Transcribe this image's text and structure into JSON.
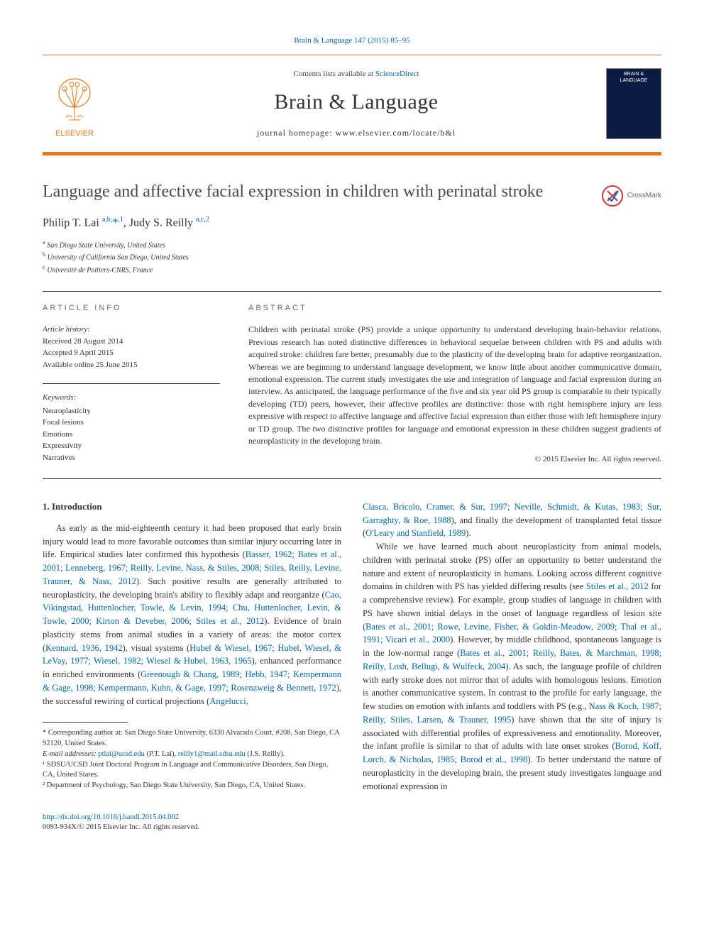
{
  "top_link": {
    "text": "Brain & Language 147 (2015) 85–95",
    "color": "#0066aa"
  },
  "masthead": {
    "contents_prefix": "Contents lists available at ",
    "contents_link": "ScienceDirect",
    "journal_name": "Brain & Language",
    "homepage_label": "journal homepage: www.elsevier.com/locate/b&l",
    "elsevier_label": "ELSEVIER",
    "cover_text": "BRAIN & LANGUAGE"
  },
  "article": {
    "title": "Language and affective facial expression in children with perinatal stroke",
    "crossmark_label": "CrossMark",
    "authors_html": "Philip T. Lai <sup>a,b,</sup><a>*</a><sup>,1</sup>, Judy S. Reilly <sup>a,c,2</sup>",
    "affiliations": [
      {
        "sup": "a",
        "text": "San Diego State University, United States"
      },
      {
        "sup": "b",
        "text": "University of California San Diego, United States"
      },
      {
        "sup": "c",
        "text": "Université de Poitiers-CNRS, France"
      }
    ]
  },
  "info": {
    "label": "ARTICLE INFO",
    "history_label": "Article history:",
    "received": "Received 28 August 2014",
    "accepted": "Accepted 9 April 2015",
    "online": "Available online 25 June 2015",
    "keywords_label": "Keywords:",
    "keywords": [
      "Neuroplasticity",
      "Focal lesions",
      "Emotions",
      "Expressivity",
      "Narratives"
    ]
  },
  "abstract": {
    "label": "ABSTRACT",
    "text": "Children with perinatal stroke (PS) provide a unique opportunity to understand developing brain-behavior relations. Previous research has noted distinctive differences in behavioral sequelae between children with PS and adults with acquired stroke: children fare better, presumably due to the plasticity of the developing brain for adaptive reorganization. Whereas we are beginning to understand language development, we know little about another communicative domain, emotional expression. The current study investigates the use and integration of language and facial expression during an interview. As anticipated, the language performance of the five and six year old PS group is comparable to their typically developing (TD) peers, however, their affective profiles are distinctive: those with right hemisphere injury are less expressive with respect to affective language and affective facial expression than either those with left hemisphere injury or TD group. The two distinctive profiles for language and emotional expression in these children suggest gradients of neuroplasticity in the developing brain.",
    "copyright": "© 2015 Elsevier Inc. All rights reserved."
  },
  "body": {
    "intro_heading": "1. Introduction",
    "col1_p1_pre": "As early as the mid-eighteenth century it had been proposed that early brain injury would lead to more favorable outcomes than similar injury occurring later in life. Empirical studies later confirmed this hypothesis (",
    "col1_p1_cite1": "Basser, 1962; Bates et al., 2001; Lenneberg, 1967; Reilly, Levine, Nass, & Stiles, 2008; Stiles, Reilly, Levine, Trauner, & Nass, 2012",
    "col1_p1_mid1": "). Such positive results are generally attributed to neuroplasticity, the developing brain's ability to flexibly adapt and reorganize (",
    "col1_p1_cite2": "Cao, Vikingstad, Huttenlocher, Towle, & Levin, 1994; Chu, Huttenlocher, Levin, & Towle, 2000; Kirton & Deveber, 2006; Stiles et al., 2012",
    "col1_p1_mid2": "). Evidence of brain plasticity stems from animal studies in a variety of areas: the motor cortex (",
    "col1_p1_cite3": "Kennard, 1936, 1942",
    "col1_p1_mid3": "), visual systems (",
    "col1_p1_cite4": "Hubel & Wiesel, 1967; Hubel, Wiesel, & LeVay, 1977; Wiesel, 1982; Wiesel & Hubel, 1963, 1965",
    "col1_p1_mid4": "), enhanced performance in enriched environments (",
    "col1_p1_cite5": "Greenough & Chang, 1989; Hebb, 1947; Kempermann & Gage, 1998; Kempermann, Kuhn, & Gage, 1997; Rosenzweig & Bennett, 1972",
    "col1_p1_mid5": "), the successful rewiring of cortical projections (",
    "col1_p1_cite6": "Angelucci,",
    "col2_p1_cite1": "Clasca, Bricolo, Cramer, & Sur, 1997; Neville, Schmidt, & Kutas, 1983; Sur, Garraghty, & Roe, 1988",
    "col2_p1_mid1": "), and finally the development of transplanted fetal tissue (",
    "col2_p1_cite2": "O'Leary and Stanfield, 1989",
    "col2_p1_end": ").",
    "col2_p2_pre": "While we have learned much about neuroplasticity from animal models, children with perinatal stroke (PS) offer an opportunity to better understand the nature and extent of neuroplasticity in humans. Looking across different cognitive domains in children with PS has yielded differing results (see ",
    "col2_p2_cite1": "Stiles et al., 2012",
    "col2_p2_mid1": " for a comprehensive review). For example, group studies of language in children with PS have shown initial delays in the onset of language regardless of lesion site (",
    "col2_p2_cite2": "Bates et al., 2001; Rowe, Levine, Fisher, & Goldin-Meadow, 2009; Thal et al., 1991; Vicari et al., 2000",
    "col2_p2_mid2": "). However, by middle childhood, spontaneous language is in the low-normal range (",
    "col2_p2_cite3": "Bates et al., 2001; Reilly, Bates, & Marchman, 1998; Reilly, Losh, Bellugi, & Wulfeck, 2004",
    "col2_p2_mid3": "). As such, the language profile of children with early stroke does not mirror that of adults with homologous lesions. Emotion is another communicative system. In contrast to the profile for early language, the few studies on emotion with infants and toddlers with PS (e.g., ",
    "col2_p2_cite4": "Nass & Koch, 1987; Reilly, Stiles, Larsen, & Trauner, 1995",
    "col2_p2_mid4": ") have shown that the site of injury is associated with differential profiles of expressiveness and emotionality. Moreover, the infant profile is similar to that of adults with late onset strokes (",
    "col2_p2_cite5": "Borod, Koff, Lorch, & Nicholas, 1985; Borod et al., 1998",
    "col2_p2_end": "). To better understand the nature of neuroplasticity in the developing brain, the present study investigates language and emotional expression in"
  },
  "footnotes": {
    "corr": "* Corresponding author at: San Diego State University, 6330 Alvarado Court, #208, San Diego, CA 92120, United States.",
    "emails_label": "E-mail addresses: ",
    "email1": "ptlai@ucsd.edu",
    "email1_name": " (P.T. Lai), ",
    "email2": "reilly1@mail.sdsu.edu",
    "email2_name": " (J.S. Reilly).",
    "fn1": "¹ SDSU/UCSD Joint Doctoral Program in Language and Communicative Disorders, San Diego, CA, United States.",
    "fn2": "² Department of Psychology, San Diego State University, San Diego, CA, United States."
  },
  "footer": {
    "doi": "http://dx.doi.org/10.1016/j.bandl.2015.04.002",
    "issn": "0093-934X/© 2015 Elsevier Inc. All rights reserved."
  },
  "colors": {
    "orange": "#e77817",
    "link": "#0066aa",
    "cover_bg": "#0a1a40",
    "crossmark_ring": "#d0343a"
  }
}
